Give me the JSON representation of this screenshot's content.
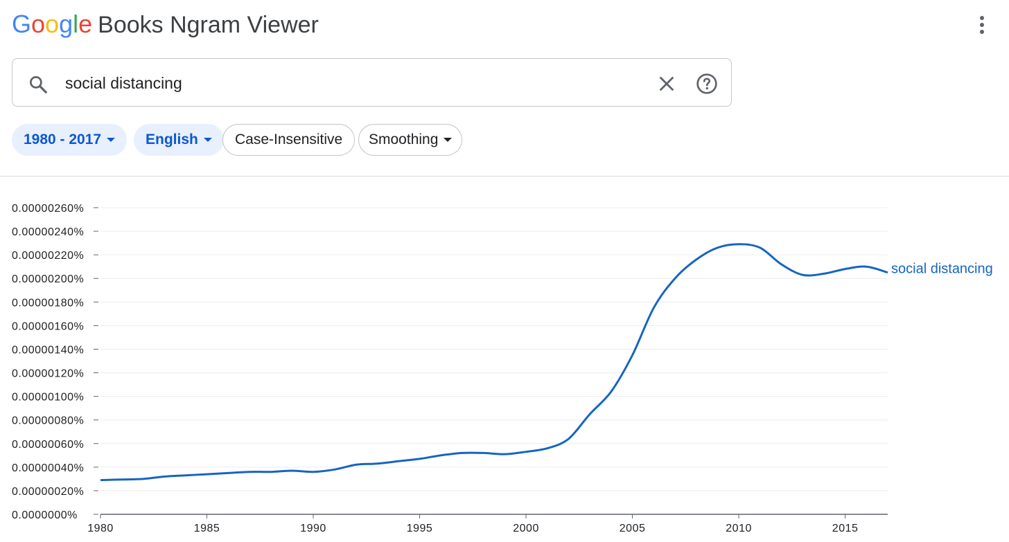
{
  "header": {
    "logo_letters": [
      {
        "ch": "G",
        "color": "#4285F4"
      },
      {
        "ch": "o",
        "color": "#EA4335"
      },
      {
        "ch": "o",
        "color": "#FBBC05"
      },
      {
        "ch": "g",
        "color": "#4285F4"
      },
      {
        "ch": "l",
        "color": "#34A853"
      },
      {
        "ch": "e",
        "color": "#EA4335"
      }
    ],
    "app_name": "Books Ngram Viewer",
    "menu_icon": "more-vert-icon"
  },
  "search": {
    "value": "social distancing",
    "search_icon": "search-icon",
    "clear_icon": "close-icon",
    "help_icon": "help-icon"
  },
  "filters": {
    "year_range": "1980 - 2017",
    "language": "English",
    "case": "Case-Insensitive",
    "smoothing": "Smoothing"
  },
  "colors": {
    "accent": "#0b57d0",
    "series": "#1565c0",
    "chip_selected_bg": "#e8f0fe"
  },
  "chart_data": {
    "type": "line",
    "title": "",
    "xlabel": "",
    "ylabel": "",
    "xlim": [
      1980,
      2017
    ],
    "ylim": [
      0,
      2.6e-06
    ],
    "yticks": [
      {
        "value": 2.6e-06,
        "label": "0.00000260%"
      },
      {
        "value": 2.4e-06,
        "label": "0.00000240%"
      },
      {
        "value": 2.2e-06,
        "label": "0.00000220%"
      },
      {
        "value": 2e-06,
        "label": "0.00000200%"
      },
      {
        "value": 1.8e-06,
        "label": "0.00000180%"
      },
      {
        "value": 1.6e-06,
        "label": "0.00000160%"
      },
      {
        "value": 1.4e-06,
        "label": "0.00000140%"
      },
      {
        "value": 1.2e-06,
        "label": "0.00000120%"
      },
      {
        "value": 1e-06,
        "label": "0.00000100%"
      },
      {
        "value": 8e-07,
        "label": "0.00000080%"
      },
      {
        "value": 6e-07,
        "label": "0.00000060%"
      },
      {
        "value": 4e-07,
        "label": "0.00000040%"
      },
      {
        "value": 2e-07,
        "label": "0.00000020%"
      },
      {
        "value": 0.0,
        "label": "0.0000000%"
      }
    ],
    "xticks": [
      "1980",
      "1985",
      "1990",
      "1995",
      "2000",
      "2005",
      "2010",
      "2015"
    ],
    "grid": true,
    "series": [
      {
        "name": "social distancing",
        "x": [
          1980,
          1981,
          1982,
          1983,
          1984,
          1985,
          1986,
          1987,
          1988,
          1989,
          1990,
          1991,
          1992,
          1993,
          1994,
          1995,
          1996,
          1997,
          1998,
          1999,
          2000,
          2001,
          2002,
          2003,
          2004,
          2005,
          2006,
          2007,
          2008,
          2009,
          2010,
          2011,
          2012,
          2013,
          2014,
          2015,
          2016,
          2017
        ],
        "values": [
          2.9e-07,
          2.95e-07,
          3e-07,
          3.2e-07,
          3.3e-07,
          3.4e-07,
          3.5e-07,
          3.6e-07,
          3.6e-07,
          3.7e-07,
          3.6e-07,
          3.8e-07,
          4.2e-07,
          4.3e-07,
          4.5e-07,
          4.7e-07,
          5e-07,
          5.2e-07,
          5.2e-07,
          5.1e-07,
          5.3e-07,
          5.6e-07,
          6.4e-07,
          8.5e-07,
          1.04e-06,
          1.35e-06,
          1.75e-06,
          2e-06,
          2.16e-06,
          2.26e-06,
          2.29e-06,
          2.26e-06,
          2.12e-06,
          2.03e-06,
          2.04e-06,
          2.08e-06,
          2.1e-06,
          2.05e-06
        ]
      }
    ]
  }
}
